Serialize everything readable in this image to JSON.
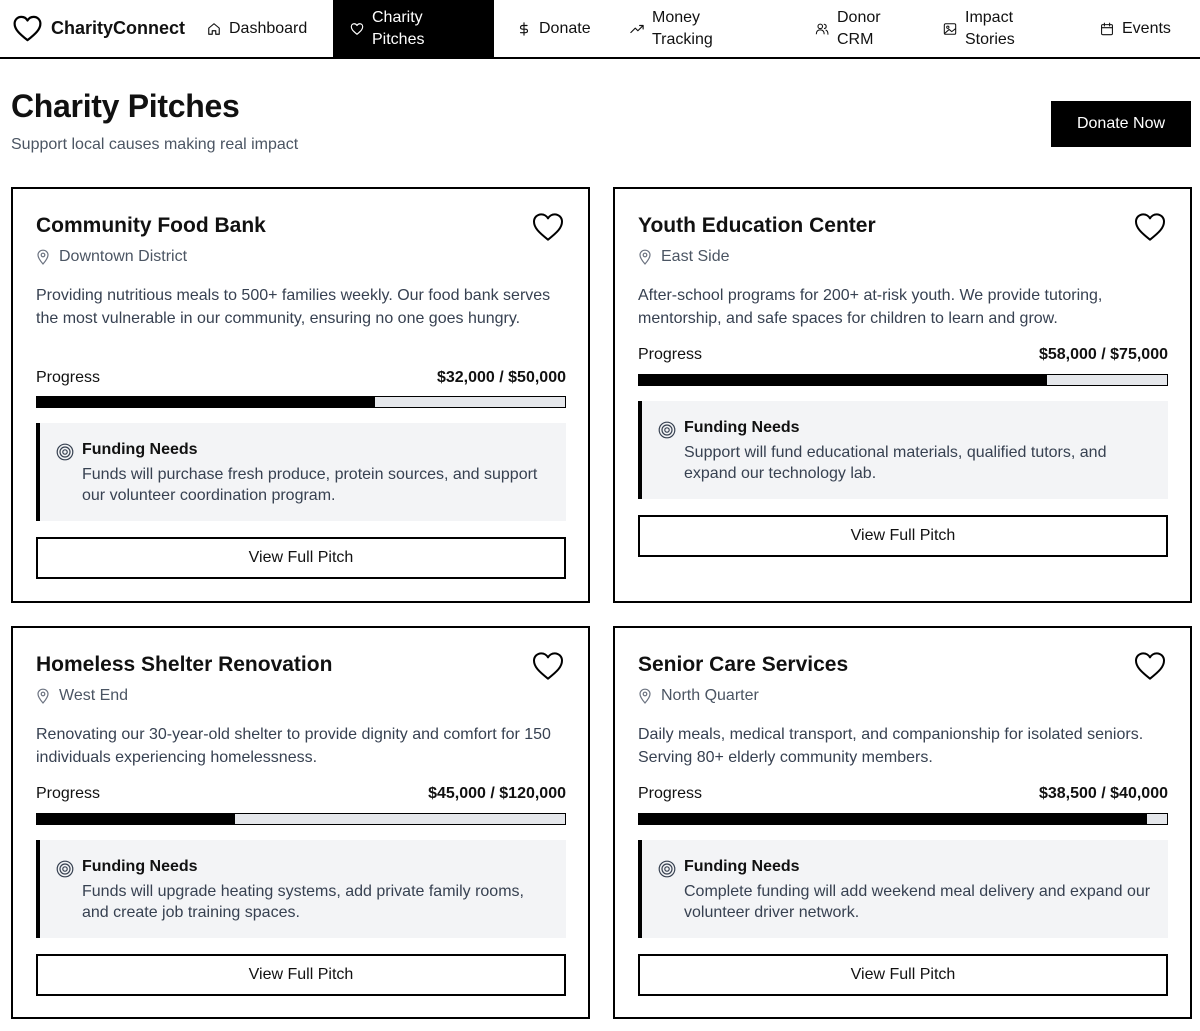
{
  "app": {
    "brand": "CharityConnect"
  },
  "nav": {
    "items": [
      {
        "label": "Dashboard",
        "icon": "home-icon"
      },
      {
        "label": "Charity Pitches",
        "icon": "heart-icon",
        "active": true
      },
      {
        "label": "Donate",
        "icon": "dollar-icon"
      },
      {
        "label": "Money Tracking",
        "icon": "trending-up-icon"
      },
      {
        "label": "Donor CRM",
        "icon": "users-icon"
      },
      {
        "label": "Impact Stories",
        "icon": "image-icon"
      },
      {
        "label": "Events",
        "icon": "calendar-icon"
      }
    ]
  },
  "header": {
    "title": "Charity Pitches",
    "subtitle": "Support local causes making real impact",
    "donate_label": "Donate Now"
  },
  "labels": {
    "progress": "Progress",
    "funding_needs": "Funding Needs",
    "view_pitch": "View Full Pitch"
  },
  "colors": {
    "accent": "#000000",
    "panel": "#f3f4f6",
    "bar_track": "#e5e7eb"
  },
  "pitches": [
    {
      "title": "Community Food Bank",
      "location": "Downtown District",
      "description": "Providing nutritious meals to 500+ families weekly. Our food bank serves the most vulnerable in our community, ensuring no one goes hungry.",
      "amount": "$32,000 / $50,000",
      "progress": 0.64,
      "needs": "Funds will purchase fresh produce, protein sources, and support our volunteer coordination program."
    },
    {
      "title": "Youth Education Center",
      "location": "East Side",
      "description": "After-school programs for 200+ at-risk youth. We provide tutoring, mentorship, and safe spaces for children to learn and grow.",
      "amount": "$58,000 / $75,000",
      "progress": 0.7733,
      "needs": "Support will fund educational materials, qualified tutors, and expand our technology lab."
    },
    {
      "title": "Homeless Shelter Renovation",
      "location": "West End",
      "description": "Renovating our 30-year-old shelter to provide dignity and comfort for 150 individuals experiencing homelessness.",
      "amount": "$45,000 / $120,000",
      "progress": 0.375,
      "needs": "Funds will upgrade heating systems, add private family rooms, and create job training spaces."
    },
    {
      "title": "Senior Care Services",
      "location": "North Quarter",
      "description": "Daily meals, medical transport, and companionship for isolated seniors. Serving 80+ elderly community members.",
      "amount": "$38,500 / $40,000",
      "progress": 0.9625,
      "needs": "Complete funding will add weekend meal delivery and expand our volunteer driver network."
    }
  ]
}
